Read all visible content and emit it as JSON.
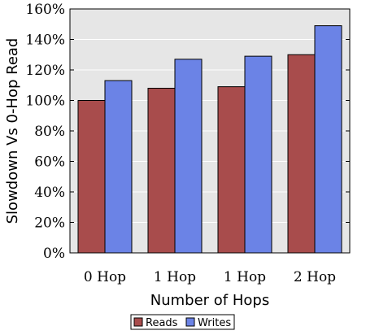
{
  "chart_data": {
    "type": "bar",
    "categories": [
      "0 Hop",
      "1 Hop",
      "1 Hop",
      "2 Hop"
    ],
    "series": [
      {
        "name": "Reads",
        "values": [
          100,
          108,
          109,
          130
        ],
        "color": "#a84c4c"
      },
      {
        "name": "Writes",
        "values": [
          113,
          127,
          129,
          149
        ],
        "color": "#6b83e6"
      }
    ],
    "xlabel": "Number of Hops",
    "ylabel": "Slowdown Vs 0-Hop Read",
    "ylim": [
      0,
      160
    ],
    "yticks": [
      "0%",
      "20%",
      "40%",
      "60%",
      "80%",
      "100%",
      "120%",
      "140%",
      "160%"
    ],
    "ytick_values": [
      0,
      20,
      40,
      60,
      80,
      100,
      120,
      140,
      160
    ],
    "grid": "horizontal",
    "legend_position": "bottom-center",
    "plot_background": "#e6e6e6"
  }
}
